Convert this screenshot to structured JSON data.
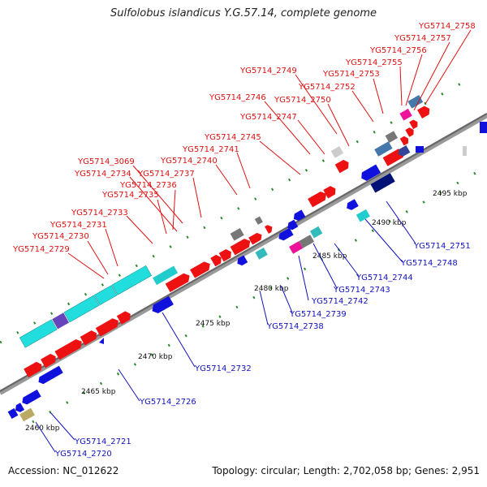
{
  "title": "Sulfolobus islandicus Y.G.57.14, complete genome",
  "accession": "Accession: NC_012622",
  "summary": "Topology: circular; Length: 2,702,058 bp; Genes: 2,951",
  "colors": {
    "forward": "#ee1111",
    "reverse": "#1111dd",
    "label_forward": "#dd1111",
    "label_reverse": "#1111bb",
    "axis": "#888888",
    "tick": "#228822",
    "cyan": "#22dddd",
    "teal": "#33bbbb",
    "purple": "#6644bb",
    "magenta": "#ee1199",
    "gray": "#777777",
    "lightgray": "#cccccc",
    "steelblue": "#4477aa",
    "navy": "#001177",
    "slate": "#334499",
    "olive": "#bbaa66"
  },
  "scale_labels": [
    "2460 kbp",
    "2465 kbp",
    "2470 kbp",
    "2475 kbp",
    "2480 kbp",
    "2485 kbp",
    "2490 kbp",
    "2495 kbp"
  ],
  "forward_labels": [
    "YG5714_2758",
    "YG5714_2757",
    "YG5714_2756",
    "YG5714_2755",
    "YG5714_2753",
    "YG5714_2749",
    "YG5714_2752",
    "YG5714_2746",
    "YG5714_2750",
    "YG5714_2747",
    "YG5714_2745",
    "YG5714_2741",
    "YG5714_3069",
    "YG5714_2740",
    "YG5714_2734",
    "YG5714_2737",
    "YG5714_2736",
    "YG5714_2735",
    "YG5714_2733",
    "YG5714_2731",
    "YG5714_2730",
    "YG5714_2729"
  ],
  "reverse_labels": [
    "YG5714_2751",
    "YG5714_2748",
    "YG5714_2744",
    "YG5714_2743",
    "YG5714_2742",
    "YG5714_2739",
    "YG5714_2738",
    "YG5714_2732",
    "YG5714_2726",
    "YG5714_2721",
    "YG5714_2720"
  ]
}
